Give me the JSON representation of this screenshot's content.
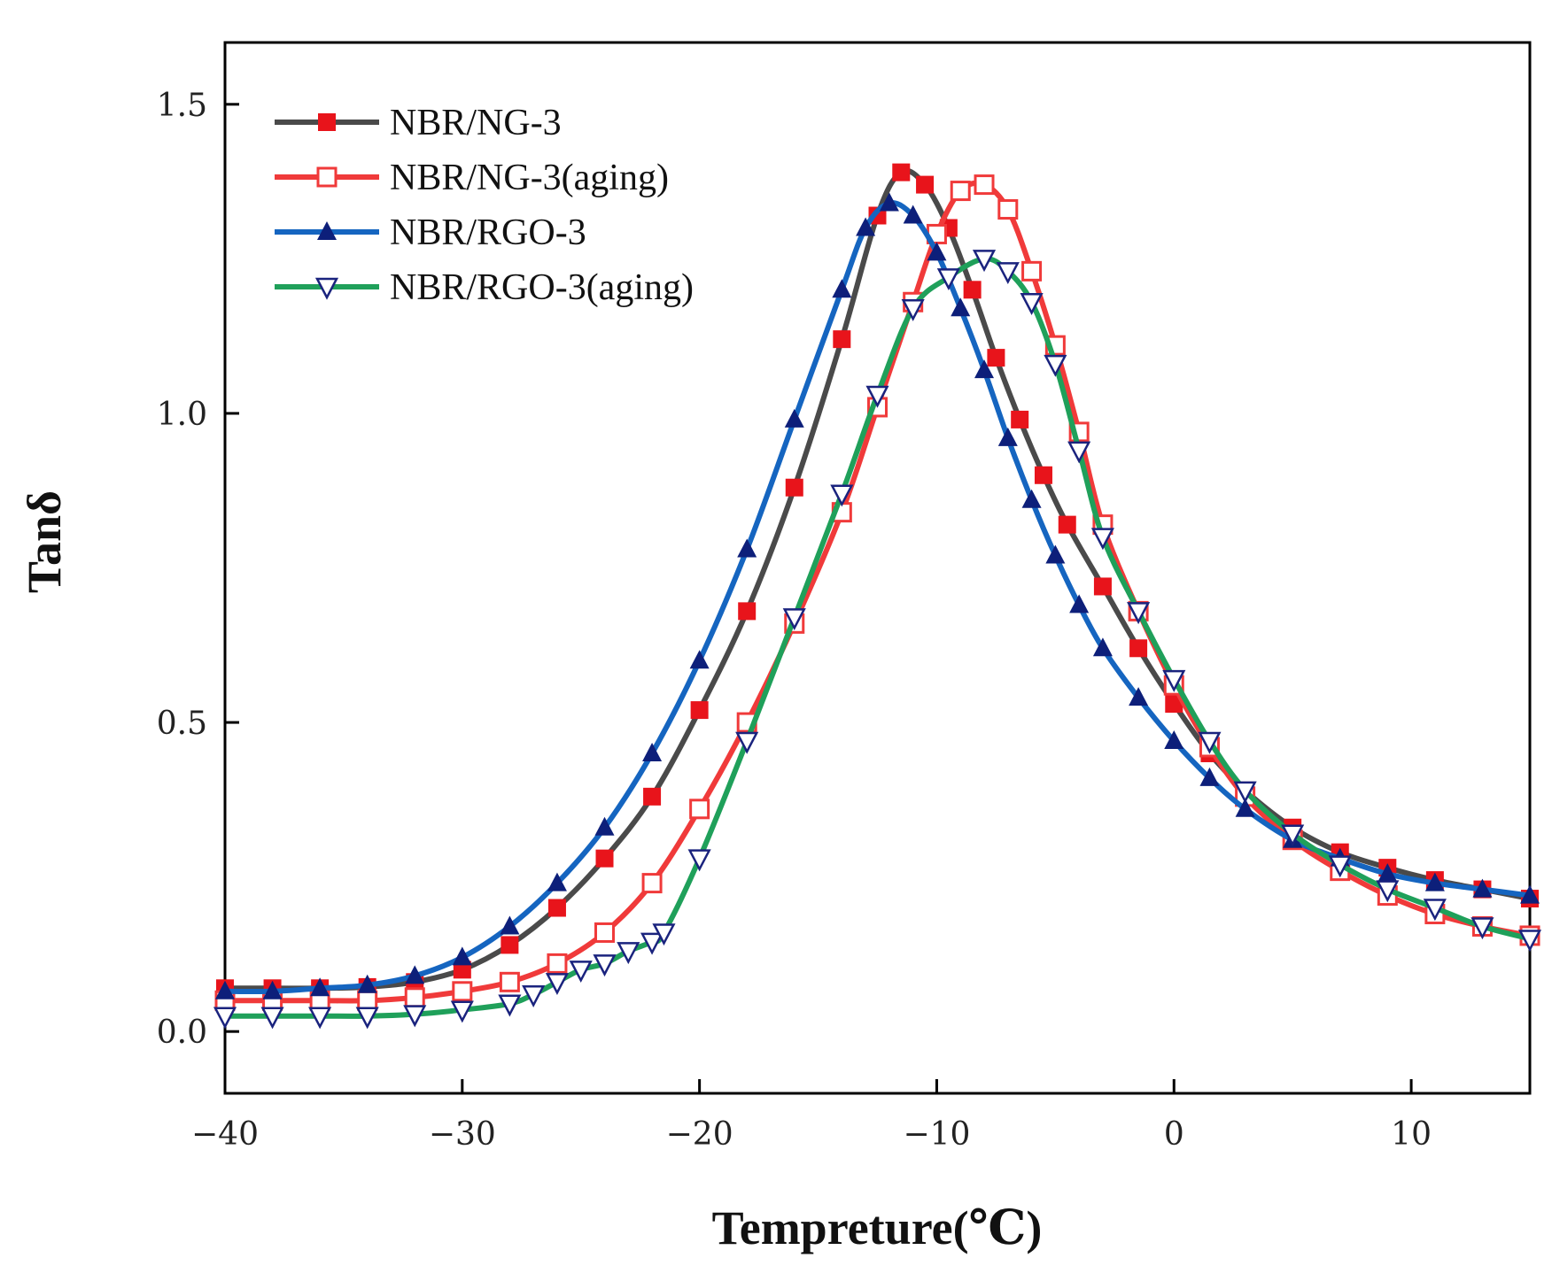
{
  "chart_data": {
    "type": "line",
    "title": "",
    "xlabel": "Tempreture(℃)",
    "ylabel": "Tanδ",
    "xlim": [
      -40,
      15
    ],
    "ylim": [
      -0.1,
      1.6
    ],
    "xticks": [
      -40,
      -30,
      -20,
      -10,
      0,
      10
    ],
    "xtick_labels": [
      "−40",
      "−30",
      "−20",
      "−10",
      "0",
      "10"
    ],
    "yticks": [
      0.0,
      0.5,
      1.0,
      1.5
    ],
    "ytick_labels": [
      "0.0",
      "0.5",
      "1.0",
      "1.5"
    ],
    "legend_position": "top-left",
    "grid": false,
    "series": [
      {
        "name": "NBR/NG-3",
        "line_color": "#4a4a4a",
        "marker_color": "#e8141b",
        "marker": "square-filled",
        "x": [
          -40,
          -38,
          -36,
          -34,
          -32,
          -30,
          -28,
          -26,
          -24,
          -22,
          -20,
          -18,
          -16,
          -14,
          -12.5,
          -11.5,
          -10.5,
          -9.5,
          -8.5,
          -7.5,
          -6.5,
          -5.5,
          -4.5,
          -3,
          -1.5,
          0,
          1.5,
          3,
          5,
          7,
          9,
          11,
          13,
          15
        ],
        "y": [
          0.07,
          0.07,
          0.07,
          0.072,
          0.08,
          0.1,
          0.14,
          0.2,
          0.28,
          0.38,
          0.52,
          0.68,
          0.88,
          1.12,
          1.32,
          1.39,
          1.37,
          1.3,
          1.2,
          1.09,
          0.99,
          0.9,
          0.82,
          0.72,
          0.62,
          0.53,
          0.45,
          0.39,
          0.33,
          0.29,
          0.265,
          0.245,
          0.23,
          0.215
        ]
      },
      {
        "name": "NBR/NG-3(aging)",
        "line_color": "#f03a3a",
        "marker_color": "#f03a3a",
        "marker": "square-open",
        "x": [
          -40,
          -38,
          -36,
          -34,
          -32,
          -30,
          -28,
          -26,
          -24,
          -22,
          -20,
          -18,
          -16,
          -14,
          -12.5,
          -11,
          -10,
          -9,
          -8,
          -7,
          -6,
          -5,
          -4,
          -3,
          -1.5,
          0,
          1.5,
          3,
          5,
          7,
          9,
          11,
          13,
          15
        ],
        "y": [
          0.05,
          0.05,
          0.05,
          0.05,
          0.055,
          0.065,
          0.08,
          0.11,
          0.16,
          0.24,
          0.36,
          0.5,
          0.66,
          0.84,
          1.01,
          1.18,
          1.29,
          1.36,
          1.37,
          1.33,
          1.23,
          1.11,
          0.97,
          0.82,
          0.68,
          0.56,
          0.46,
          0.38,
          0.31,
          0.26,
          0.22,
          0.19,
          0.17,
          0.155
        ]
      },
      {
        "name": "NBR/RGO-3",
        "line_color": "#1565c0",
        "marker_color": "#0d1f7a",
        "marker": "triangle-filled",
        "x": [
          -40,
          -38,
          -36,
          -34,
          -32,
          -30,
          -28,
          -26,
          -24,
          -22,
          -20,
          -18,
          -16,
          -14,
          -13,
          -12,
          -11,
          -10,
          -9,
          -8,
          -7,
          -6,
          -5,
          -4,
          -3,
          -1.5,
          0,
          1.5,
          3,
          5,
          7,
          9,
          11,
          13,
          15
        ],
        "y": [
          0.065,
          0.065,
          0.07,
          0.075,
          0.09,
          0.12,
          0.17,
          0.24,
          0.33,
          0.45,
          0.6,
          0.78,
          0.99,
          1.2,
          1.3,
          1.34,
          1.32,
          1.26,
          1.17,
          1.07,
          0.96,
          0.86,
          0.77,
          0.69,
          0.62,
          0.54,
          0.47,
          0.41,
          0.36,
          0.31,
          0.28,
          0.255,
          0.24,
          0.23,
          0.22
        ]
      },
      {
        "name": "NBR/RGO-3(aging)",
        "line_color": "#1fa05a",
        "marker_color": "#1a237e",
        "marker": "triangle-down-open",
        "x": [
          -40,
          -38,
          -36,
          -34,
          -32,
          -30,
          -28,
          -27,
          -26,
          -25,
          -24,
          -23,
          -22,
          -21.5,
          -20,
          -18,
          -16,
          -14,
          -12.5,
          -11,
          -9.5,
          -8,
          -7,
          -6,
          -5,
          -4,
          -3,
          -1.5,
          0,
          1.5,
          3,
          5,
          7,
          9,
          11,
          13,
          15
        ],
        "y": [
          0.025,
          0.025,
          0.025,
          0.025,
          0.028,
          0.035,
          0.045,
          0.06,
          0.08,
          0.1,
          0.11,
          0.13,
          0.145,
          0.16,
          0.28,
          0.47,
          0.67,
          0.87,
          1.03,
          1.17,
          1.22,
          1.25,
          1.23,
          1.18,
          1.08,
          0.94,
          0.8,
          0.68,
          0.57,
          0.47,
          0.39,
          0.32,
          0.27,
          0.23,
          0.2,
          0.17,
          0.15
        ]
      }
    ]
  }
}
